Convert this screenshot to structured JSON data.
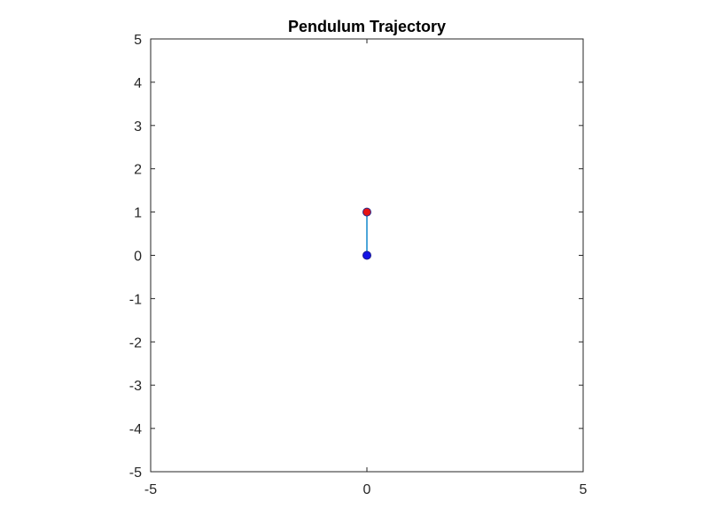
{
  "chart_data": {
    "type": "scatter",
    "title": "Pendulum Trajectory",
    "xlabel": "",
    "ylabel": "",
    "xlim": [
      -5,
      5
    ],
    "ylim": [
      -5,
      5
    ],
    "grid": false,
    "x_ticks": [
      -5,
      0,
      5
    ],
    "x_tick_labels": [
      "-5",
      "0",
      "5"
    ],
    "y_ticks": [
      -5,
      -4,
      -3,
      -2,
      -1,
      0,
      1,
      2,
      3,
      4,
      5
    ],
    "y_tick_labels": [
      "-5",
      "-4",
      "-3",
      "-2",
      "-1",
      "0",
      "1",
      "2",
      "3",
      "4",
      "5"
    ],
    "rod": {
      "from": [
        0,
        0
      ],
      "to": [
        0,
        1
      ],
      "color": "#4DA6D9"
    },
    "points": [
      {
        "x": 0,
        "y": 0,
        "color": "#1414E6",
        "edge": "#1a1a8c",
        "role": "pivot"
      },
      {
        "x": 0,
        "y": 1,
        "color": "#E61414",
        "edge": "#2a2a8c",
        "role": "bob"
      }
    ],
    "axis_color": "#262626",
    "background": "#ffffff"
  }
}
